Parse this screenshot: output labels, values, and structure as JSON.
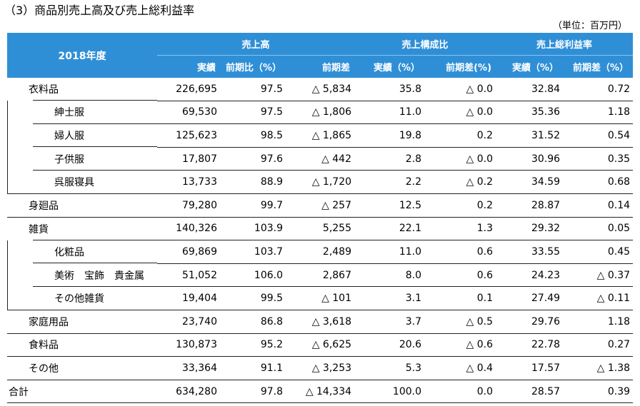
{
  "title": "（3）商品別売上高及び売上総利益率",
  "unit": "（単位：百万円）",
  "header": {
    "year": "2018年度",
    "groups": [
      "売上高",
      "売上構成比",
      "売上総利益率"
    ],
    "subcols": [
      "実績",
      "前期比（%）",
      "前期差",
      "実績（%）",
      "前期差(%)",
      "実績（%）",
      "前期差（%）"
    ]
  },
  "rows": [
    {
      "name": "衣料品",
      "level": 0,
      "values": [
        "226,695",
        "97.5",
        "△ 5,834",
        "35.8",
        "△ 0.0",
        "32.84",
        "0.72"
      ]
    },
    {
      "name": "紳士服",
      "level": 1,
      "values": [
        "69,530",
        "97.5",
        "△ 1,806",
        "11.0",
        "△ 0.0",
        "35.36",
        "1.18"
      ]
    },
    {
      "name": "婦人服",
      "level": 1,
      "values": [
        "125,623",
        "98.5",
        "△ 1,865",
        "19.8",
        "0.2",
        "31.52",
        "0.54"
      ]
    },
    {
      "name": "子供服",
      "level": 1,
      "values": [
        "17,807",
        "97.6",
        "△ 442",
        "2.8",
        "△ 0.0",
        "30.96",
        "0.35"
      ]
    },
    {
      "name": "呉服寝具",
      "level": 1,
      "values": [
        "13,733",
        "88.9",
        "△ 1,720",
        "2.2",
        "△ 0.2",
        "34.59",
        "0.68"
      ]
    },
    {
      "name": "身廻品",
      "level": 0,
      "values": [
        "79,280",
        "99.7",
        "△ 257",
        "12.5",
        "0.2",
        "28.87",
        "0.14"
      ]
    },
    {
      "name": "雑貨",
      "level": 0,
      "values": [
        "140,326",
        "103.9",
        "5,255",
        "22.1",
        "1.3",
        "29.32",
        "0.05"
      ]
    },
    {
      "name": "化粧品",
      "level": 1,
      "values": [
        "69,869",
        "103.7",
        "2,489",
        "11.0",
        "0.6",
        "33.55",
        "0.45"
      ]
    },
    {
      "name": "美術　宝飾　貴金属",
      "level": 1,
      "values": [
        "51,052",
        "106.0",
        "2,867",
        "8.0",
        "0.6",
        "24.23",
        "△ 0.37"
      ]
    },
    {
      "name": "その他雑貨",
      "level": 1,
      "values": [
        "19,404",
        "99.5",
        "△ 101",
        "3.1",
        "0.1",
        "27.49",
        "△ 0.11"
      ]
    },
    {
      "name": "家庭用品",
      "level": 0,
      "values": [
        "23,740",
        "86.8",
        "△ 3,618",
        "3.7",
        "△ 0.5",
        "29.76",
        "1.18"
      ]
    },
    {
      "name": "食料品",
      "level": 0,
      "values": [
        "130,873",
        "95.2",
        "△ 6,625",
        "20.6",
        "△ 0.6",
        "22.78",
        "0.27"
      ]
    },
    {
      "name": "その他",
      "level": 0,
      "values": [
        "33,364",
        "91.1",
        "△ 3,253",
        "5.3",
        "△ 0.4",
        "17.57",
        "△ 1.38"
      ]
    },
    {
      "name": "合計",
      "level": 2,
      "values": [
        "634,280",
        "97.8",
        "△ 14,334",
        "100.0",
        "0.0",
        "28.57",
        "0.39"
      ]
    }
  ]
}
